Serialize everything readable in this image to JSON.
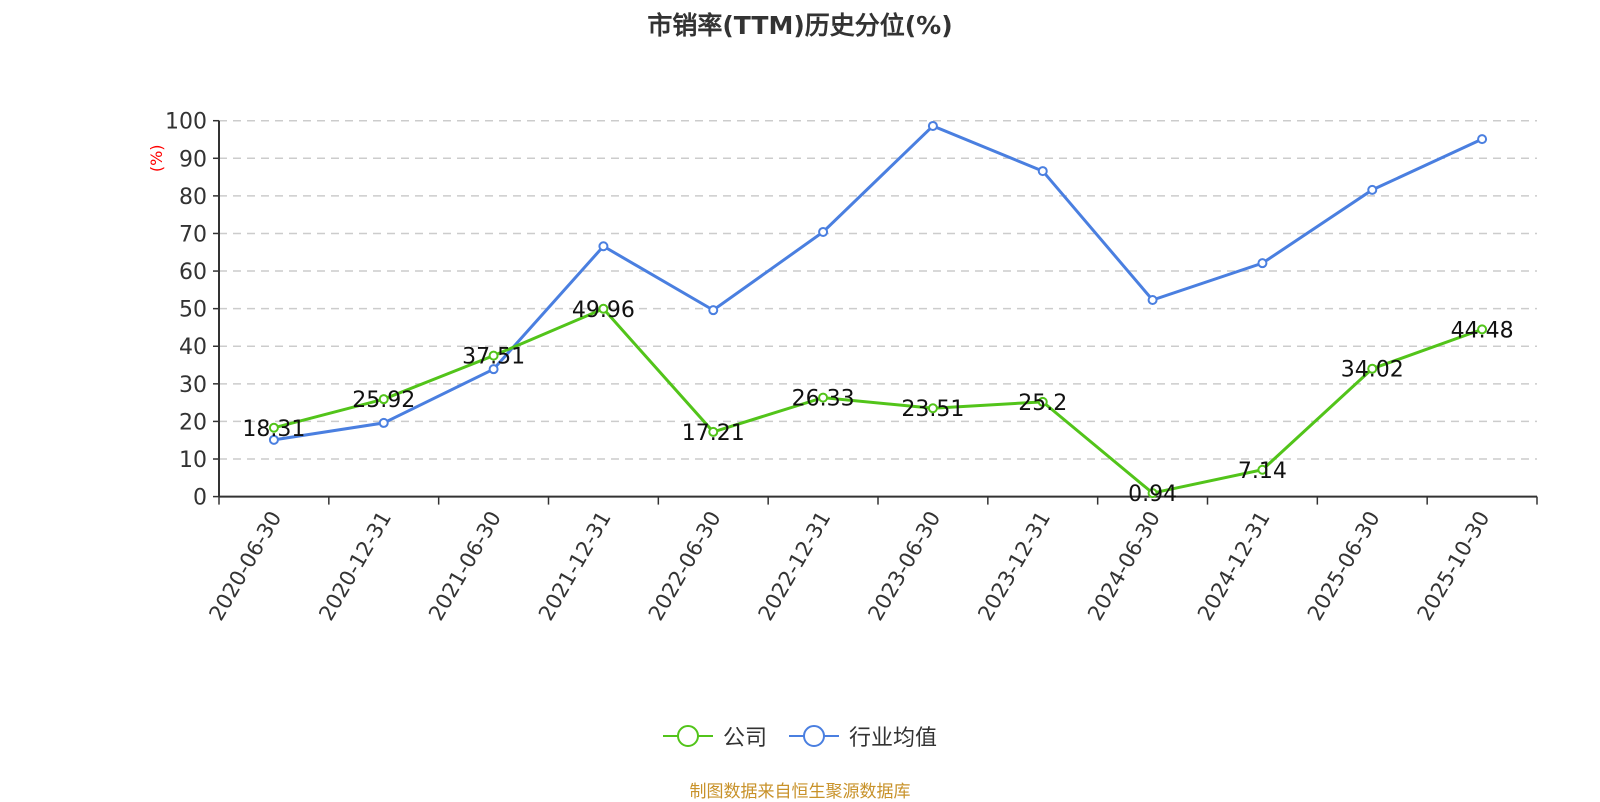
{
  "chart_data": {
    "type": "line",
    "title": "市销率(TTM)历史分位(%)",
    "ylabel": "(%)",
    "ylim": [
      0,
      100
    ],
    "yticks": [
      0,
      10,
      20,
      30,
      40,
      50,
      60,
      70,
      80,
      90,
      100
    ],
    "grid": true,
    "legend_position": "bottom",
    "categories": [
      "2020-06-30",
      "2020-12-31",
      "2021-06-30",
      "2021-12-31",
      "2022-06-30",
      "2022-12-31",
      "2023-06-30",
      "2023-12-31",
      "2024-06-30",
      "2024-12-31",
      "2025-06-30",
      "2025-10-30"
    ],
    "series": [
      {
        "name": "公司",
        "color": "#52c41a",
        "values": [
          18.31,
          25.92,
          37.51,
          49.96,
          17.21,
          26.33,
          23.51,
          25.2,
          0.94,
          7.14,
          34.02,
          44.48
        ],
        "labels": [
          "18.31",
          "25.92",
          "37.51",
          "49.96",
          "17.21",
          "26.33",
          "23.51",
          "25.2",
          "0.94",
          "7.14",
          "34.02",
          "44.48"
        ]
      },
      {
        "name": "行业均值",
        "color": "#4a7fe0",
        "values": [
          15.1,
          19.6,
          33.9,
          66.6,
          49.6,
          70.4,
          98.6,
          86.6,
          52.3,
          62.1,
          81.6,
          95.1
        ]
      }
    ]
  },
  "source": "制图数据来自恒生聚源数据库"
}
